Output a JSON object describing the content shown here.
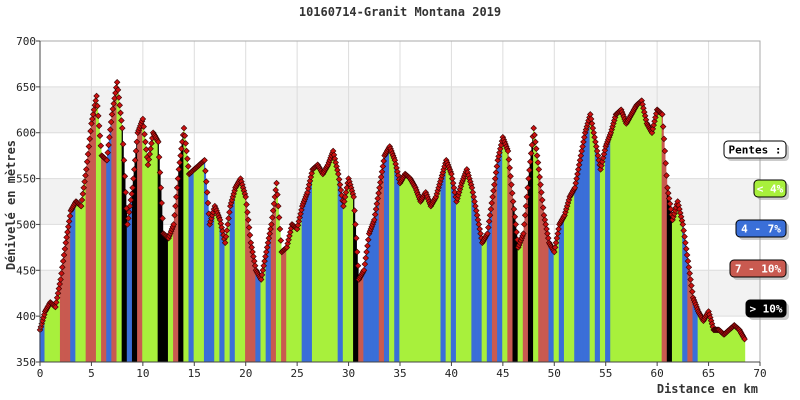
{
  "chart_data": {
    "type": "area",
    "title": "10160714-Granit Montana 2019",
    "xlabel": "Distance en km",
    "ylabel": "Dénivelé en mètres",
    "xlim": [
      0,
      70
    ],
    "ylim": [
      350,
      700
    ],
    "x_ticks": [
      0,
      5,
      10,
      15,
      20,
      25,
      30,
      35,
      40,
      45,
      50,
      55,
      60,
      65,
      70
    ],
    "y_ticks": [
      350,
      400,
      450,
      500,
      550,
      600,
      650,
      700
    ],
    "grid": true,
    "legend_position": "right",
    "legend_title": "Pentes :",
    "legend": [
      {
        "label": "< 4%",
        "color": "#a8f03c",
        "text_color": "#ffffff"
      },
      {
        "label": "4 - 7%",
        "color": "#3a6fd8",
        "text_color": "#ffffff"
      },
      {
        "label": "7 - 10%",
        "color": "#c95a50",
        "text_color": "#ffffff"
      },
      {
        "label": "> 10%",
        "color": "#000000",
        "text_color": "#ffffff"
      }
    ],
    "series": [
      {
        "x": [
          0,
          0.5,
          1,
          1.5,
          2,
          2.5,
          3,
          3.5,
          4,
          4.5,
          5,
          5.5,
          6,
          6.5,
          7,
          7.5,
          8,
          8.5,
          9,
          9.5,
          10,
          10.5,
          11,
          11.5,
          12,
          12.5,
          13,
          13.5,
          14,
          14.5,
          15,
          15.5,
          16,
          16.5,
          17,
          17.5,
          18,
          18.5,
          19,
          19.5,
          20,
          20.5,
          21,
          21.5,
          22,
          22.5,
          23,
          23.5,
          24,
          24.5,
          25,
          25.5,
          26,
          26.5,
          27,
          27.5,
          28,
          28.5,
          29,
          29.5,
          30,
          30.5,
          31,
          31.5,
          32,
          32.5,
          33,
          33.5,
          34,
          34.5,
          35,
          35.5,
          36,
          36.5,
          37,
          37.5,
          38,
          38.5,
          39,
          39.5,
          40,
          40.5,
          41,
          41.5,
          42,
          42.5,
          43,
          43.5,
          44,
          44.5,
          45,
          45.5,
          46,
          46.5,
          47,
          47.5,
          48,
          48.5,
          49,
          49.5,
          50,
          50.5,
          51,
          51.5,
          52,
          52.5,
          53,
          53.5,
          54,
          54.5,
          55,
          55.5,
          56,
          56.5,
          57,
          57.5,
          58,
          58.5,
          59,
          59.5,
          60,
          60.5,
          61,
          61.5,
          62,
          62.5,
          63,
          63.5,
          64,
          64.5,
          65,
          65.5,
          66,
          66.5,
          67,
          67.5,
          68,
          68.5
        ],
        "y": [
          385,
          405,
          415,
          410,
          440,
          480,
          515,
          525,
          520,
          560,
          610,
          640,
          575,
          570,
          620,
          655,
          605,
          500,
          540,
          600,
          615,
          565,
          600,
          590,
          490,
          485,
          500,
          560,
          605,
          555,
          560,
          565,
          570,
          500,
          520,
          505,
          480,
          520,
          540,
          550,
          530,
          480,
          450,
          440,
          470,
          500,
          545,
          470,
          475,
          500,
          495,
          520,
          535,
          560,
          565,
          555,
          565,
          580,
          555,
          520,
          550,
          530,
          440,
          450,
          490,
          505,
          540,
          575,
          585,
          570,
          545,
          555,
          550,
          540,
          525,
          535,
          520,
          530,
          550,
          570,
          555,
          525,
          545,
          560,
          540,
          510,
          480,
          490,
          530,
          570,
          595,
          580,
          525,
          475,
          490,
          550,
          605,
          560,
          510,
          480,
          470,
          500,
          510,
          530,
          540,
          570,
          600,
          620,
          590,
          560,
          585,
          600,
          620,
          625,
          610,
          620,
          630,
          635,
          610,
          600,
          625,
          620,
          540,
          505,
          525,
          500,
          460,
          420,
          405,
          395,
          405,
          385,
          385,
          380,
          385,
          390,
          385,
          375
        ]
      }
    ]
  }
}
